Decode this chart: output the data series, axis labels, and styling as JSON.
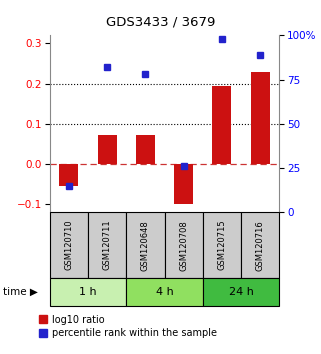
{
  "title": "GDS3433 / 3679",
  "samples": [
    "GSM120710",
    "GSM120711",
    "GSM120648",
    "GSM120708",
    "GSM120715",
    "GSM120716"
  ],
  "log10_ratio": [
    -0.055,
    0.072,
    0.072,
    -0.1,
    0.193,
    0.228
  ],
  "percentile_rank_pct": [
    15,
    82,
    78,
    26,
    98,
    89
  ],
  "time_groups": [
    {
      "label": "1 h",
      "samples": [
        0,
        1
      ],
      "color": "#c8f0b0"
    },
    {
      "label": "4 h",
      "samples": [
        2,
        3
      ],
      "color": "#90e060"
    },
    {
      "label": "24 h",
      "samples": [
        4,
        5
      ],
      "color": "#40bb40"
    }
  ],
  "red_bar_color": "#cc1111",
  "blue_dot_color": "#2222cc",
  "ylim_left": [
    -0.12,
    0.32
  ],
  "ylim_right": [
    0,
    100
  ],
  "yticks_left": [
    -0.1,
    0.0,
    0.1,
    0.2,
    0.3
  ],
  "yticks_right": [
    0,
    25,
    50,
    75,
    100
  ],
  "bg_color": "#ffffff",
  "sample_bg_color": "#cccccc",
  "legend_red_label": "log10 ratio",
  "legend_blue_label": "percentile rank within the sample"
}
